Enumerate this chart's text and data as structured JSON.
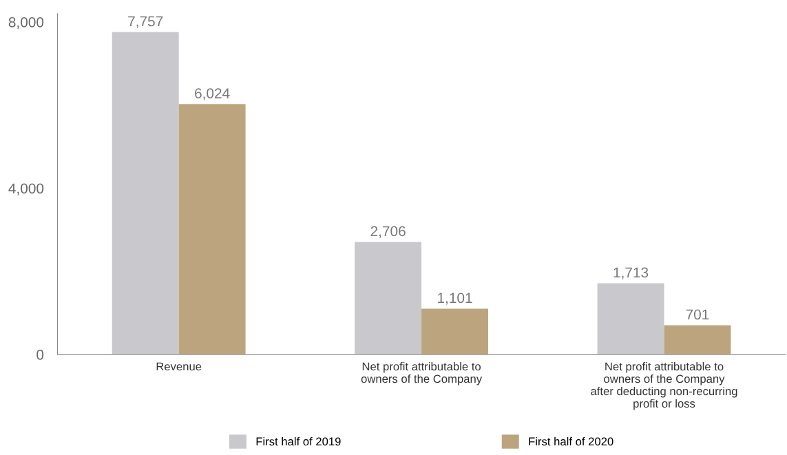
{
  "chart_data": {
    "type": "bar",
    "categories": [
      "Revenue",
      "Net profit attributable to\nowners of the Company",
      "Net profit attributable to\nowners of the Company\nafter deducting non-recurring\nprofit or loss"
    ],
    "series": [
      {
        "name": "First half of 2019",
        "color": "#c9c9cd",
        "values": [
          7757,
          2706,
          1713
        ],
        "value_labels": [
          "7,757",
          "2,706",
          "1,713"
        ]
      },
      {
        "name": "First half of 2020",
        "color": "#bca57e",
        "values": [
          6024,
          1101,
          701
        ],
        "value_labels": [
          "6,024",
          "1,101",
          "701"
        ]
      }
    ],
    "ylim": [
      0,
      8200
    ],
    "yticks": [
      {
        "value": 0,
        "label": "0"
      },
      {
        "value": 4000,
        "label": "4,000"
      },
      {
        "value": 8000,
        "label": "8,000"
      }
    ],
    "grid": false,
    "legend": "bottom"
  }
}
